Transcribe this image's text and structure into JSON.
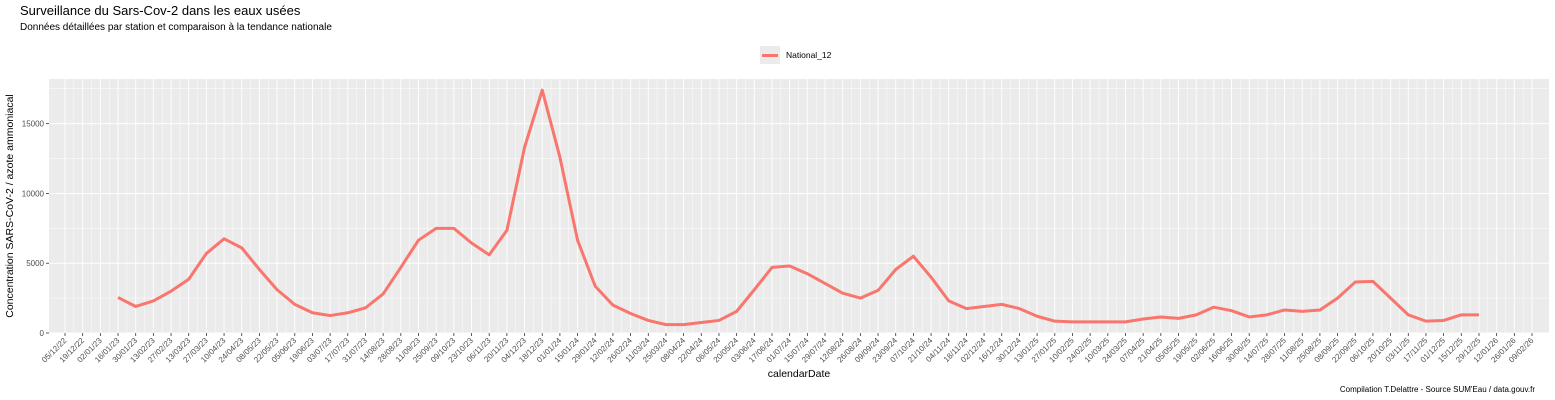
{
  "chart_data": {
    "type": "line",
    "title": "Surveillance du Sars-Cov-2 dans les eaux usées",
    "subtitle": "Données détaillées par station et comparaison à la tendance nationale",
    "xlabel": "calendarDate",
    "ylabel": "Concentration SARS-CoV-2 / azote ammoniacal",
    "caption": "Compilation T.Delattre - Source SUM'Eau / data.gouv.fr",
    "legend_position": "top",
    "grid": true,
    "ylim": [
      0,
      18200
    ],
    "y_ticks": [
      0,
      5000,
      10000,
      15000
    ],
    "x_tick_labels": [
      "05/12/22",
      "19/12/22",
      "02/01/23",
      "16/01/23",
      "30/01/23",
      "13/02/23",
      "27/02/23",
      "13/03/23",
      "27/03/23",
      "10/04/23",
      "24/04/23",
      "08/05/23",
      "22/05/23",
      "05/06/23",
      "19/06/23",
      "03/07/23",
      "17/07/23",
      "31/07/23",
      "14/08/23",
      "28/08/23",
      "11/09/23",
      "25/09/23",
      "09/10/23",
      "23/10/23",
      "06/11/23",
      "20/11/23",
      "04/12/23",
      "18/12/23",
      "01/01/24",
      "15/01/24",
      "29/01/24",
      "12/02/24",
      "26/02/24",
      "11/03/24",
      "25/03/24",
      "08/04/24",
      "22/04/24",
      "06/05/24",
      "20/05/24",
      "03/06/24",
      "17/06/24",
      "01/07/24",
      "15/07/24",
      "29/07/24",
      "12/08/24",
      "26/08/24",
      "09/09/24",
      "23/09/24",
      "07/10/24",
      "21/10/24",
      "04/11/24",
      "18/11/24",
      "02/12/24",
      "16/12/24",
      "30/12/24",
      "13/01/25",
      "27/01/25",
      "10/02/25",
      "24/02/25",
      "10/03/25",
      "24/03/25",
      "07/04/25",
      "21/04/25",
      "05/05/25",
      "19/05/25",
      "02/06/25",
      "16/06/25",
      "30/06/25",
      "14/07/25",
      "28/07/25",
      "11/08/25",
      "25/08/25",
      "08/09/25",
      "22/09/25",
      "06/10/25",
      "20/10/25",
      "03/11/25",
      "17/11/25",
      "01/12/25",
      "15/12/25",
      "29/12/25",
      "12/01/26",
      "26/01/26",
      "09/02/26"
    ],
    "series": [
      {
        "name": "National_12",
        "color": "#F8766D",
        "points": [
          [
            "16/01/23",
            2550
          ],
          [
            "30/01/23",
            1900
          ],
          [
            "13/02/23",
            2300
          ],
          [
            "27/02/23",
            3000
          ],
          [
            "13/03/23",
            3850
          ],
          [
            "27/03/23",
            5700
          ],
          [
            "10/04/23",
            6750
          ],
          [
            "24/04/23",
            6100
          ],
          [
            "08/05/23",
            4550
          ],
          [
            "22/05/23",
            3100
          ],
          [
            "05/06/23",
            2050
          ],
          [
            "19/06/23",
            1450
          ],
          [
            "03/07/23",
            1250
          ],
          [
            "17/07/23",
            1450
          ],
          [
            "31/07/23",
            1800
          ],
          [
            "14/08/23",
            2800
          ],
          [
            "28/08/23",
            4700
          ],
          [
            "11/09/23",
            6650
          ],
          [
            "25/09/23",
            7500
          ],
          [
            "09/10/23",
            7500
          ],
          [
            "23/10/23",
            6450
          ],
          [
            "06/11/23",
            5600
          ],
          [
            "20/11/23",
            7350
          ],
          [
            "04/12/23",
            13300
          ],
          [
            "18/12/23",
            17400
          ],
          [
            "01/01/24",
            12600
          ],
          [
            "15/01/24",
            6650
          ],
          [
            "29/01/24",
            3350
          ],
          [
            "12/02/24",
            2000
          ],
          [
            "26/02/24",
            1400
          ],
          [
            "11/03/24",
            900
          ],
          [
            "25/03/24",
            600
          ],
          [
            "08/04/24",
            600
          ],
          [
            "22/04/24",
            750
          ],
          [
            "06/05/24",
            900
          ],
          [
            "20/05/24",
            1550
          ],
          [
            "03/06/24",
            3100
          ],
          [
            "17/06/24",
            4700
          ],
          [
            "01/07/24",
            4800
          ],
          [
            "15/07/24",
            4250
          ],
          [
            "29/07/24",
            3550
          ],
          [
            "12/08/24",
            2850
          ],
          [
            "26/08/24",
            2500
          ],
          [
            "09/09/24",
            3050
          ],
          [
            "23/09/24",
            4550
          ],
          [
            "07/10/24",
            5500
          ],
          [
            "21/10/24",
            4000
          ],
          [
            "04/11/24",
            2300
          ],
          [
            "18/11/24",
            1750
          ],
          [
            "02/12/24",
            1900
          ],
          [
            "16/12/24",
            2050
          ],
          [
            "30/12/24",
            1750
          ],
          [
            "13/01/25",
            1200
          ],
          [
            "27/01/25",
            850
          ],
          [
            "10/02/25",
            800
          ],
          [
            "24/02/25",
            800
          ],
          [
            "10/03/25",
            800
          ],
          [
            "24/03/25",
            800
          ],
          [
            "07/04/25",
            1000
          ],
          [
            "21/04/25",
            1150
          ],
          [
            "05/05/25",
            1050
          ],
          [
            "19/05/25",
            1300
          ],
          [
            "02/06/25",
            1850
          ],
          [
            "16/06/25",
            1600
          ],
          [
            "30/06/25",
            1150
          ],
          [
            "14/07/25",
            1300
          ],
          [
            "28/07/25",
            1650
          ],
          [
            "11/08/25",
            1550
          ],
          [
            "25/08/25",
            1650
          ],
          [
            "08/09/25",
            2500
          ],
          [
            "22/09/25",
            3650
          ],
          [
            "06/10/25",
            3700
          ],
          [
            "20/10/25",
            2500
          ],
          [
            "03/11/25",
            1300
          ],
          [
            "17/11/25",
            850
          ],
          [
            "01/12/25",
            900
          ],
          [
            "15/12/25",
            1300
          ],
          [
            "29/12/25",
            1300
          ]
        ]
      }
    ]
  }
}
